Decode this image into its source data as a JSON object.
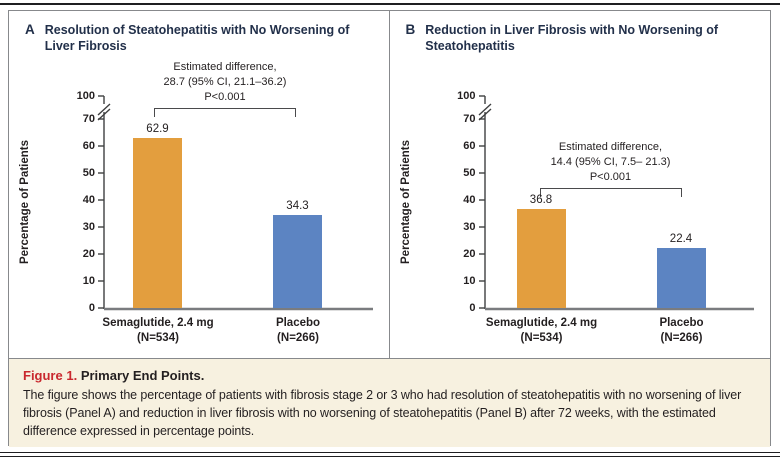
{
  "colors": {
    "semaglutide_bar": "#E39E3E",
    "placebo_bar": "#5C84C2",
    "title_navy": "#22304A",
    "accent_red": "#C9282E",
    "caption_bg": "#F7F1E0"
  },
  "chart_data": [
    {
      "type": "bar",
      "panel": "A",
      "title": "Resolution of Steatohepatitis with No Worsening of Liver Fibrosis",
      "ylabel": "Percentage of Patients",
      "ylim": [
        0,
        100
      ],
      "axis_break": "between 70 and 100",
      "grid": "off",
      "yticks": [
        "100",
        "70",
        "60",
        "50",
        "40",
        "30",
        "20",
        "10",
        "0"
      ],
      "categories": [
        {
          "label": "Semaglutide, 2.4 mg",
          "n": "(N=534)"
        },
        {
          "label": "Placebo",
          "n": "(N=266)"
        }
      ],
      "values": [
        62.9,
        34.3
      ],
      "annotation": [
        "Estimated difference,",
        "28.7 (95% CI, 21.1–36.2)",
        "P<0.001"
      ]
    },
    {
      "type": "bar",
      "panel": "B",
      "title": "Reduction in Liver Fibrosis with No Worsening of Steatohepatitis",
      "ylabel": "Percentage of Patients",
      "ylim": [
        0,
        100
      ],
      "axis_break": "between 70 and 100",
      "grid": "off",
      "yticks": [
        "100",
        "70",
        "60",
        "50",
        "40",
        "30",
        "20",
        "10",
        "0"
      ],
      "categories": [
        {
          "label": "Semaglutide, 2.4 mg",
          "n": "(N=534)"
        },
        {
          "label": "Placebo",
          "n": "(N=266)"
        }
      ],
      "values": [
        36.8,
        22.4
      ],
      "annotation": [
        "Estimated difference,",
        "14.4 (95% CI, 7.5– 21.3)",
        "P<0.001"
      ]
    }
  ],
  "caption": {
    "label": "Figure 1.",
    "title": "Primary End Points.",
    "body": "The figure shows the percentage of patients with fibrosis stage 2 or 3 who had resolution of steatohepatitis with no worsening of liver fibrosis (Panel A) and reduction in liver fibrosis with no worsening of steatohepatitis (Panel B) after 72 weeks, with the estimated difference expressed in percentage points."
  }
}
